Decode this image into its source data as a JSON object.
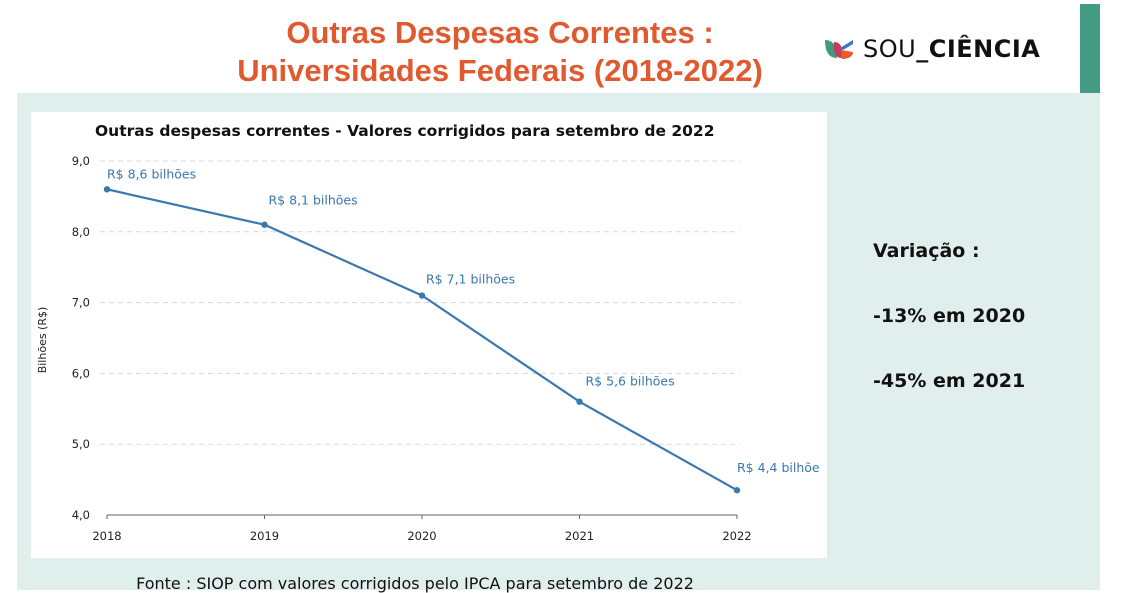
{
  "slide": {
    "title_line1": "Outras Despesas Correntes :",
    "title_line2": "Universidades Federais (2018-2022)",
    "title_color": "#e0592f",
    "accent_color": "#449b84",
    "panel_color": "#e0efeb"
  },
  "logo": {
    "icon": "sou-ciencia-leaf-logo-icon",
    "text_light": "SOU",
    "text_bold": "_CIÊNCIA"
  },
  "variation": {
    "heading": "Variação :",
    "items": [
      "-13% em 2020",
      "-45% em 2021"
    ]
  },
  "source": "Fonte : SIOP com valores corrigidos pelo IPCA para setembro de 2022",
  "chart_data": {
    "type": "line",
    "title": "Outras despesas correntes - Valores corrigidos para setembro de 2022",
    "xlabel": "",
    "ylabel": "Bilhões (R$)",
    "x": [
      "2018",
      "2019",
      "2020",
      "2021",
      "2022"
    ],
    "series": [
      {
        "name": "Outras despesas correntes",
        "values": [
          8.6,
          8.1,
          7.1,
          5.6,
          4.35
        ],
        "labels": [
          "R$ 8,6 bilhões",
          "R$ 8,1 bilhões",
          "R$ 7,1 bilhões",
          "R$ 5,6 bilhões",
          "R$ 4,4 bilhõe"
        ],
        "color": "#3a78b0"
      }
    ],
    "ylim": [
      4.0,
      9.0
    ],
    "yticks": [
      "4,0",
      "5,0",
      "6,0",
      "7,0",
      "8,0",
      "9,0"
    ],
    "ytick_values": [
      4,
      5,
      6,
      7,
      8,
      9
    ],
    "grid": "horizontal-dashed",
    "legend": "none"
  }
}
